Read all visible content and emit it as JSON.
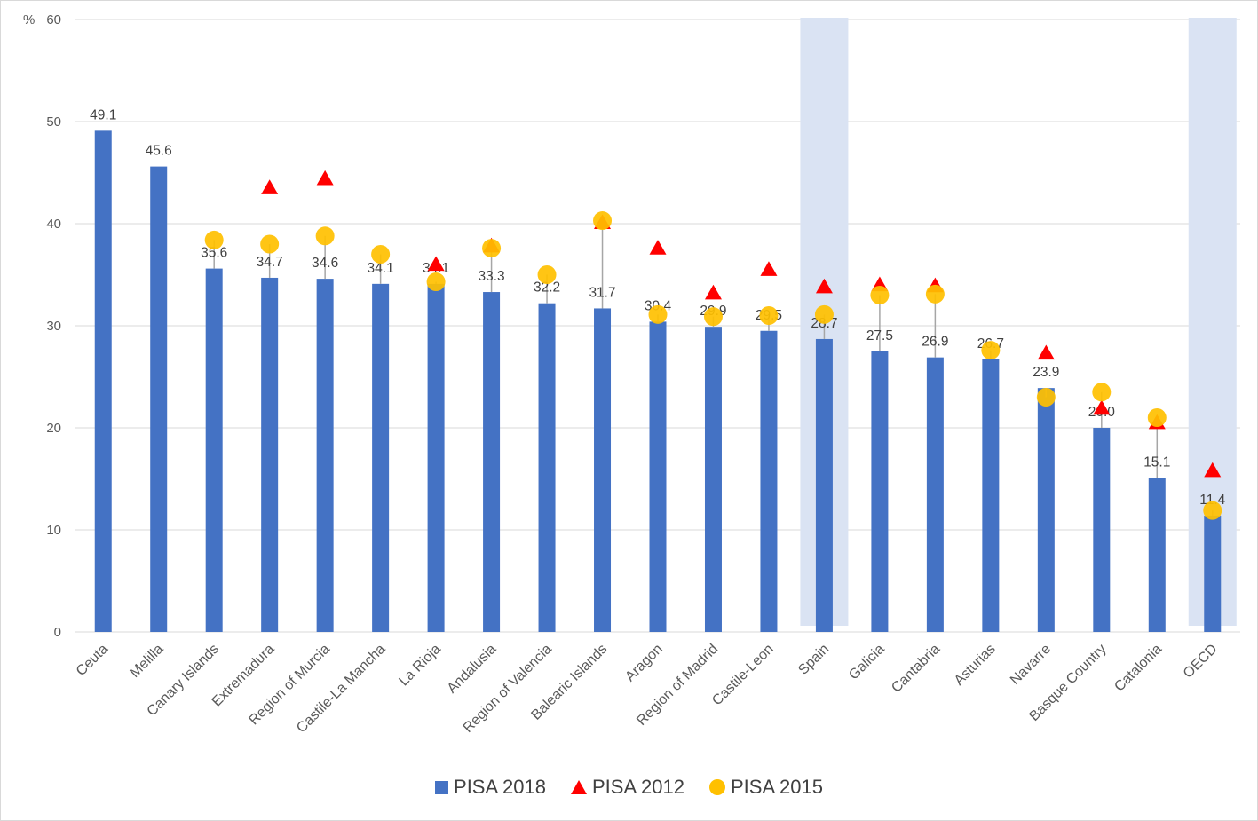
{
  "chart_data": {
    "type": "bar",
    "unit_label": "%",
    "ylim": [
      0,
      60
    ],
    "yticks": [
      "0",
      "10",
      "20",
      "30",
      "40",
      "50",
      "60"
    ],
    "grid": true,
    "legend_position": "bottom",
    "categories": [
      "Ceuta",
      "Melilla",
      "Canary Islands",
      "Extremadura",
      "Region of Murcia",
      "Castile-La Mancha",
      "La Rioja",
      "Andalusia",
      "Region of Valencia",
      "Balearic Islands",
      "Aragon",
      "Region of Madrid",
      "Castile-Leon",
      "Spain",
      "Galicia",
      "Cantabria",
      "Asturias",
      "Navarre",
      "Basque Country",
      "Catalonia",
      "OECD"
    ],
    "highlighted_categories": [
      "Spain",
      "OECD"
    ],
    "highlight_color": "#dae3f3",
    "series": [
      {
        "name": "PISA 2018",
        "marker": "bar",
        "color": "#4472c4",
        "values": [
          49.1,
          45.6,
          35.6,
          34.7,
          34.6,
          34.1,
          34.1,
          33.3,
          32.2,
          31.7,
          30.4,
          29.9,
          29.5,
          28.7,
          27.5,
          26.9,
          26.7,
          23.9,
          20.0,
          15.1,
          11.4
        ],
        "labels": [
          "49.1",
          "45.6",
          "35.6",
          "34.7",
          "34.6",
          "34.1",
          "34.1",
          "33.3",
          "32.2",
          "31.7",
          "30.4",
          "29.9",
          "29.5",
          "28.7",
          "27.5",
          "26.9",
          "26.7",
          "23.9",
          "20.0",
          "15.1",
          "11.4"
        ]
      },
      {
        "name": "PISA 2012",
        "marker": "triangle",
        "color": "#ff0000",
        "values": [
          null,
          null,
          null,
          43.5,
          44.4,
          null,
          36.0,
          37.8,
          null,
          40.1,
          37.6,
          33.2,
          35.5,
          33.8,
          34.0,
          33.9,
          null,
          27.3,
          21.9,
          20.5,
          15.8
        ]
      },
      {
        "name": "PISA 2015",
        "marker": "circle",
        "color": "#ffc000",
        "values": [
          null,
          null,
          38.4,
          38.0,
          38.8,
          37.0,
          34.3,
          37.6,
          35.0,
          40.3,
          31.1,
          30.9,
          31.0,
          31.1,
          33.0,
          33.1,
          27.6,
          23.0,
          23.5,
          21.0,
          11.9
        ]
      }
    ]
  }
}
